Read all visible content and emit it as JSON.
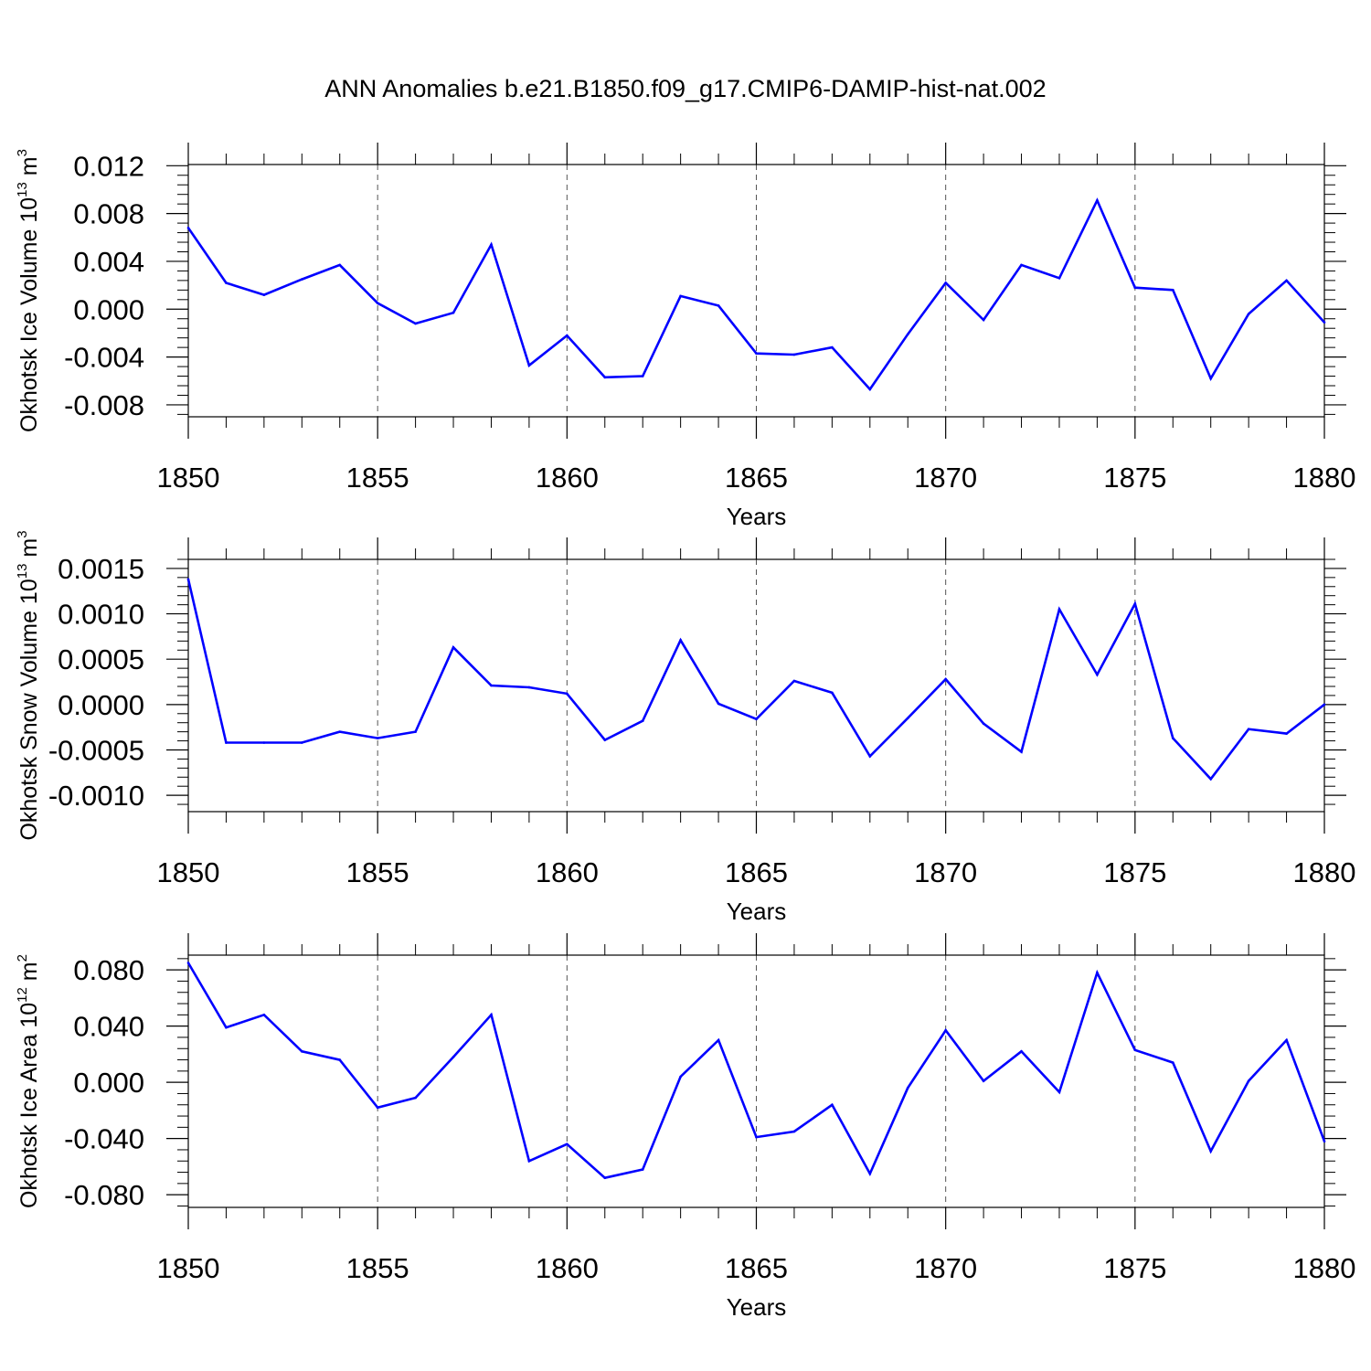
{
  "title": "ANN Anomalies b.e21.B1850.f09_g17.CMIP6-DAMIP-hist-nat.002",
  "chart_data": [
    {
      "type": "line",
      "xlabel": "Years",
      "ylabel": {
        "prefix": "Okhotsk Ice Volume 10",
        "exp": "13",
        "unit": " m",
        "unit_exp": "3"
      },
      "xlim": [
        1850,
        1880
      ],
      "ylim": [
        -0.009,
        0.0121
      ],
      "xticks": [
        1850,
        1855,
        1860,
        1865,
        1870,
        1875,
        1880
      ],
      "xtick_labels": [
        "1850",
        "1855",
        "1860",
        "1865",
        "1870",
        "1875",
        "1880"
      ],
      "yticks": [
        0.012,
        0.008,
        0.004,
        0.0,
        -0.004,
        -0.008
      ],
      "ytick_labels": [
        "0.012",
        "0.008",
        "0.004",
        "0.000",
        "-0.004",
        "-0.008"
      ],
      "yminor_step": 0.0008,
      "grid": "dashed-vertical",
      "line_color": "#0000ff",
      "x": [
        1850,
        1851,
        1852,
        1853,
        1854,
        1855,
        1856,
        1857,
        1858,
        1859,
        1860,
        1861,
        1862,
        1863,
        1864,
        1865,
        1866,
        1867,
        1868,
        1869,
        1870,
        1871,
        1872,
        1873,
        1874,
        1875,
        1876,
        1877,
        1878,
        1879,
        1880
      ],
      "values": [
        0.0068,
        0.0022,
        0.0012,
        0.0025,
        0.0037,
        0.0005,
        -0.0012,
        -0.0003,
        0.0054,
        -0.0047,
        -0.0022,
        -0.0057,
        -0.0056,
        0.0011,
        0.0003,
        -0.0037,
        -0.0038,
        -0.0032,
        -0.0067,
        -0.0021,
        0.0022,
        -0.0009,
        0.0037,
        0.0026,
        0.0091,
        0.0018,
        0.0016,
        -0.0058,
        -0.0004,
        0.0024,
        -0.0011
      ]
    },
    {
      "type": "line",
      "xlabel": "Years",
      "ylabel": {
        "prefix": "Okhotsk Snow Volume 10",
        "exp": "13",
        "unit": " m",
        "unit_exp": "3"
      },
      "xlim": [
        1850,
        1880
      ],
      "ylim": [
        -0.00118,
        0.0016
      ],
      "xticks": [
        1850,
        1855,
        1860,
        1865,
        1870,
        1875,
        1880
      ],
      "xtick_labels": [
        "1850",
        "1855",
        "1860",
        "1865",
        "1870",
        "1875",
        "1880"
      ],
      "yticks": [
        0.0015,
        0.001,
        0.0005,
        0.0,
        -0.0005,
        -0.001
      ],
      "ytick_labels": [
        "0.0015",
        "0.0010",
        "0.0005",
        "0.0000",
        "-0.0005",
        "-0.0010"
      ],
      "yminor_step": 0.0001,
      "grid": "dashed-vertical",
      "line_color": "#0000ff",
      "x": [
        1850,
        1851,
        1852,
        1853,
        1854,
        1855,
        1856,
        1857,
        1858,
        1859,
        1860,
        1861,
        1862,
        1863,
        1864,
        1865,
        1866,
        1867,
        1868,
        1869,
        1870,
        1871,
        1872,
        1873,
        1874,
        1875,
        1876,
        1877,
        1878,
        1879,
        1880
      ],
      "values": [
        0.00138,
        -0.00042,
        -0.00042,
        -0.00042,
        -0.0003,
        -0.00037,
        -0.0003,
        0.00063,
        0.00021,
        0.00019,
        0.00012,
        -0.00039,
        -0.00018,
        0.00071,
        1e-05,
        -0.00016,
        0.00026,
        0.00013,
        -0.00057,
        -0.00015,
        0.00028,
        -0.00021,
        -0.00052,
        0.00105,
        0.00033,
        0.00111,
        -0.00037,
        -0.00082,
        -0.00027,
        -0.00032,
        0.0
      ]
    },
    {
      "type": "line",
      "xlabel": "Years",
      "ylabel": {
        "prefix": "Okhotsk Ice Area 10",
        "exp": "12",
        "unit": " m",
        "unit_exp": "2"
      },
      "xlim": [
        1850,
        1880
      ],
      "ylim": [
        -0.089,
        0.0905
      ],
      "xticks": [
        1850,
        1855,
        1860,
        1865,
        1870,
        1875,
        1880
      ],
      "xtick_labels": [
        "1850",
        "1855",
        "1860",
        "1865",
        "1870",
        "1875",
        "1880"
      ],
      "yticks": [
        0.08,
        0.04,
        0.0,
        -0.04,
        -0.08
      ],
      "ytick_labels": [
        "0.080",
        "0.040",
        "0.000",
        "-0.040",
        "-0.080"
      ],
      "yminor_step": 0.008,
      "grid": "dashed-vertical",
      "line_color": "#0000ff",
      "x": [
        1850,
        1851,
        1852,
        1853,
        1854,
        1855,
        1856,
        1857,
        1858,
        1859,
        1860,
        1861,
        1862,
        1863,
        1864,
        1865,
        1866,
        1867,
        1868,
        1869,
        1870,
        1871,
        1872,
        1873,
        1874,
        1875,
        1876,
        1877,
        1878,
        1879,
        1880
      ],
      "values": [
        0.085,
        0.039,
        0.048,
        0.022,
        0.016,
        -0.018,
        -0.011,
        0.018,
        0.048,
        -0.056,
        -0.044,
        -0.068,
        -0.062,
        0.004,
        0.03,
        -0.039,
        -0.035,
        -0.016,
        -0.065,
        -0.004,
        0.037,
        0.001,
        0.022,
        -0.007,
        0.078,
        0.023,
        0.014,
        -0.049,
        0.001,
        0.03,
        -0.042
      ]
    }
  ]
}
